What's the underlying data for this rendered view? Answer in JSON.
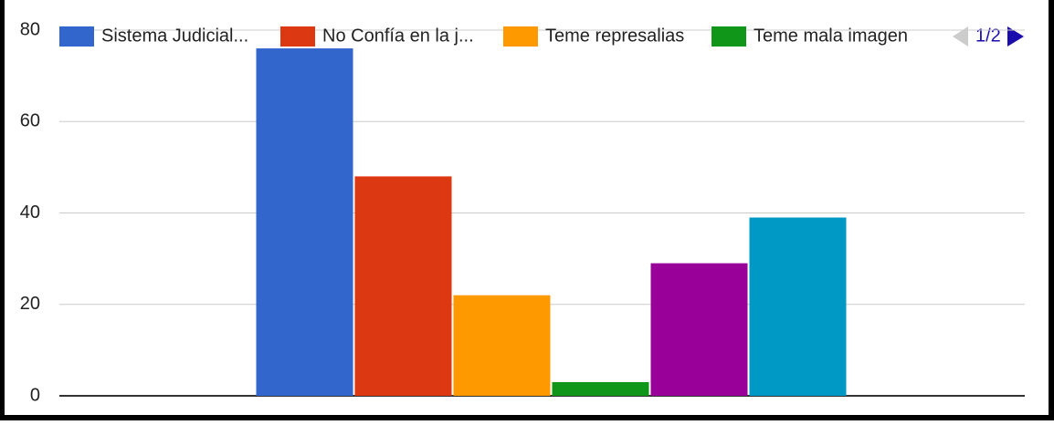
{
  "chart_data": {
    "type": "bar",
    "categories": [
      null
    ],
    "series": [
      {
        "name": "Sistema Judicial...",
        "color": "#3366cc",
        "values": [
          76
        ]
      },
      {
        "name": "No Confía en la j...",
        "color": "#dc3912",
        "values": [
          48
        ]
      },
      {
        "name": "Teme represalias",
        "color": "#ff9900",
        "values": [
          22
        ]
      },
      {
        "name": "Teme mala imagen",
        "color": "#109618",
        "values": [
          3
        ]
      },
      {
        "name": null,
        "color": "#990099",
        "values": [
          29
        ]
      },
      {
        "name": null,
        "color": "#0099c6",
        "values": [
          39
        ]
      }
    ],
    "legend_page": "1/2",
    "ylim": [
      0,
      80
    ],
    "yticks": [
      0,
      20,
      40,
      60,
      80
    ],
    "grid": true,
    "legend": "top"
  }
}
